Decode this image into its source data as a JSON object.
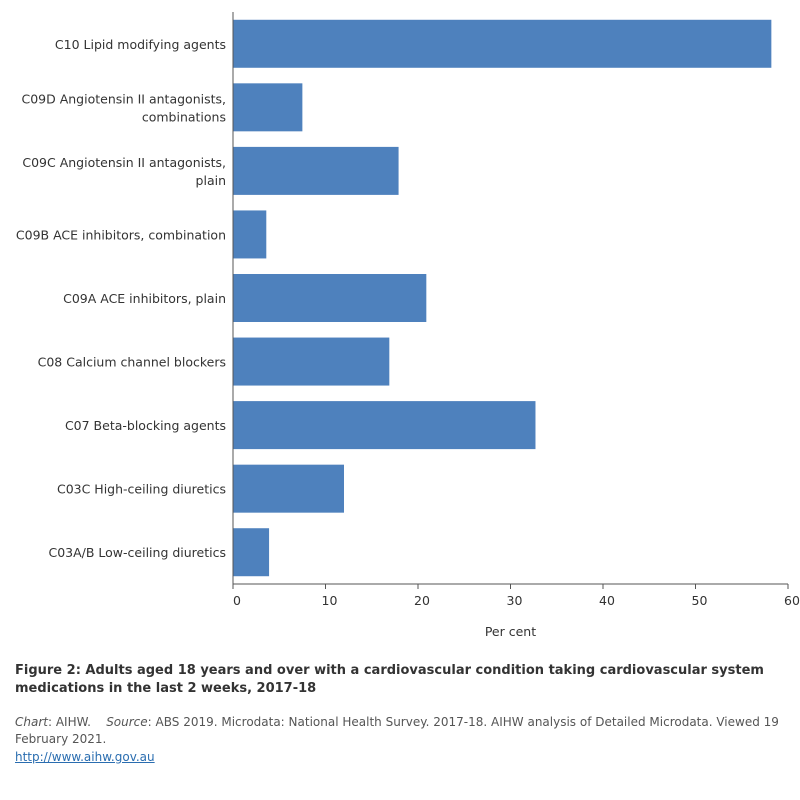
{
  "chart_data": {
    "type": "bar",
    "orientation": "horizontal",
    "categories": [
      [
        "C10 Lipid modifying agents"
      ],
      [
        "C09D Angiotensin II antagonists,",
        "combinations"
      ],
      [
        "C09C Angiotensin II antagonists,",
        "plain"
      ],
      [
        "C09B ACE inhibitors, combination"
      ],
      [
        "C09A ACE inhibitors, plain"
      ],
      [
        "C08 Calcium channel blockers"
      ],
      [
        "C07 Beta-blocking agents"
      ],
      [
        "C03C High-ceiling diuretics"
      ],
      [
        "C03A/B Low-ceiling diuretics"
      ]
    ],
    "values": [
      58.2,
      7.5,
      17.9,
      3.6,
      20.9,
      16.9,
      32.7,
      12.0,
      3.9
    ],
    "xlabel": "Per cent",
    "xlim": [
      0,
      60
    ],
    "xticks": [
      "0",
      "10",
      "20",
      "30",
      "40",
      "50",
      "60"
    ],
    "grid": false,
    "bar_color": "#4e81bd"
  },
  "figure": {
    "title": "Figure 2: Adults aged 18 years and over with a cardiovascular condition taking cardiovascular system medications in the last 2 weeks, 2017-18",
    "chart_label": "Chart",
    "chart_value": ": AIHW.",
    "source_label": "Source",
    "source_value": ": ABS 2019. Microdata: National Health Survey. 2017-18. AIHW analysis of Detailed Microdata. Viewed 19 February 2021.",
    "link": "http://www.aihw.gov.au"
  }
}
